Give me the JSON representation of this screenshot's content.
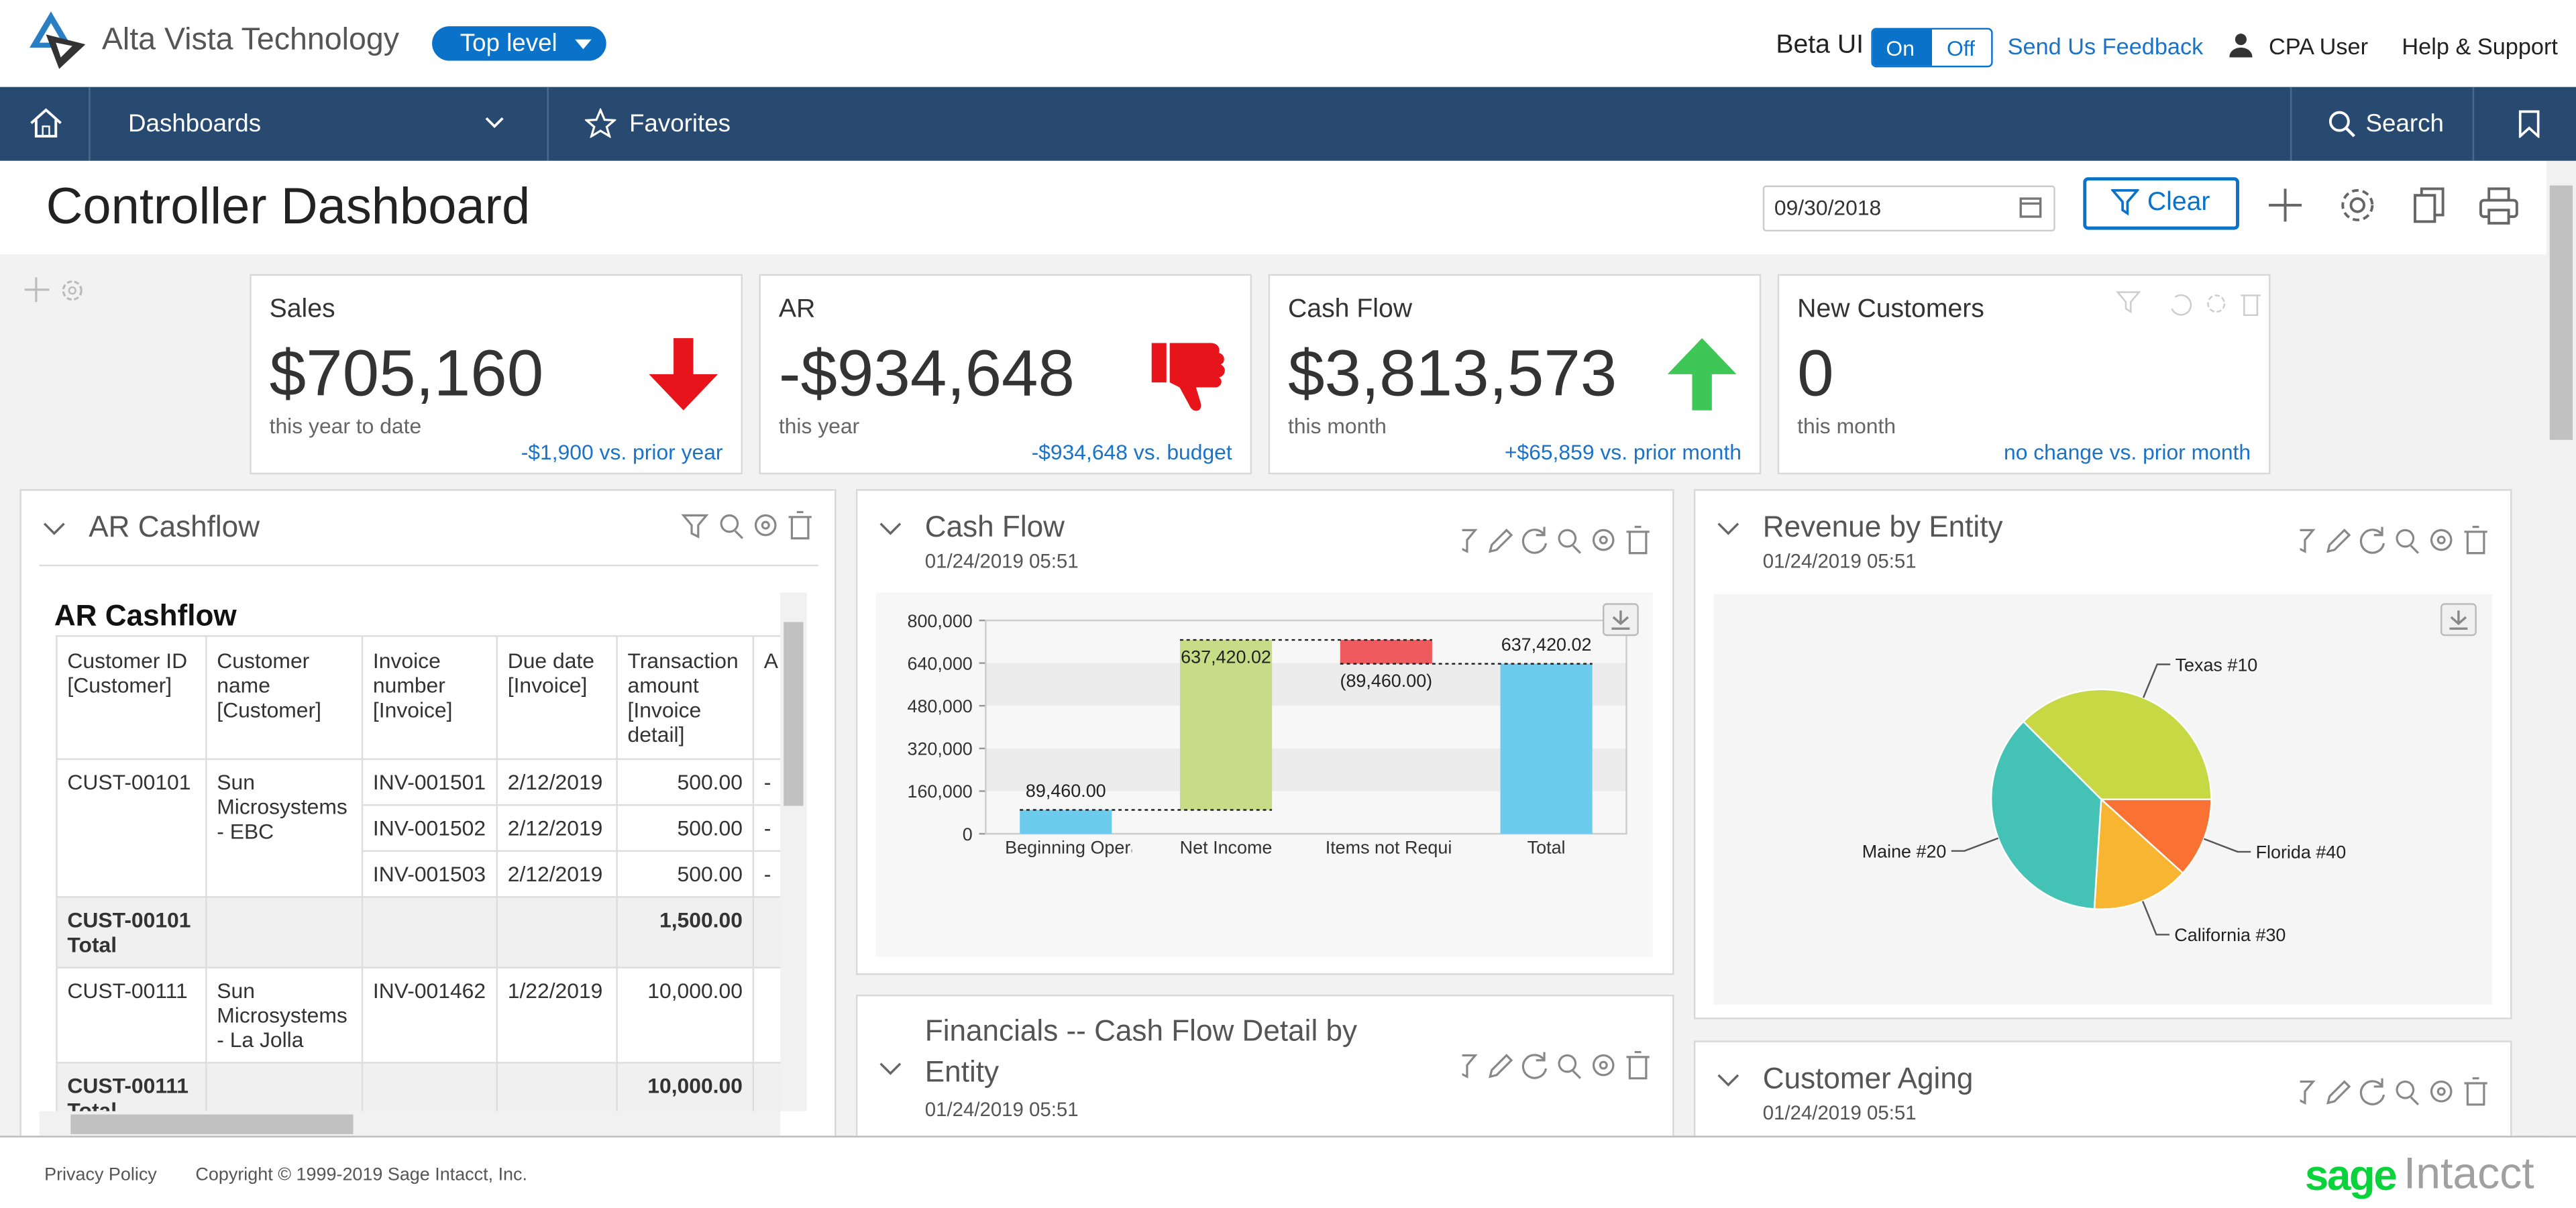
{
  "header": {
    "brand": "Alta Vista Technology",
    "level": "Top level",
    "beta_label": "Beta UI",
    "toggle_on": "On",
    "toggle_off": "Off",
    "feedback": "Send Us Feedback",
    "user": "CPA User",
    "help": "Help & Support"
  },
  "nav": {
    "dashboards": "Dashboards",
    "favorites": "Favorites",
    "search": "Search"
  },
  "page": {
    "title": "Controller Dashboard",
    "date": "09/30/2018",
    "clear": "Clear"
  },
  "kpis": [
    {
      "title": "Sales",
      "value": "$705,160",
      "period": "this year to date",
      "comparison": "-$1,900 vs. prior year"
    },
    {
      "title": "AR",
      "value": "-$934,648",
      "period": "this year",
      "comparison": "-$934,648 vs. budget"
    },
    {
      "title": "Cash Flow",
      "value": "$3,813,573",
      "period": "this month",
      "comparison": "+$65,859 vs. prior month"
    },
    {
      "title": "New Customers",
      "value": "0",
      "period": "this month",
      "comparison": "no change vs. prior month"
    }
  ],
  "ar_cashflow": {
    "panel_title": "AR Cashflow",
    "table_title": "AR Cashflow",
    "columns": [
      "Customer ID [Customer]",
      "Customer name [Customer]",
      "Invoice number [Invoice]",
      "Due date [Invoice]",
      "Transaction amount [Invoice detail]",
      "A"
    ],
    "groups": [
      {
        "customer_id": "CUST-00101",
        "customer_name": "Sun Microsystems - EBC",
        "invoices": [
          {
            "number": "INV-001501",
            "due": "2/12/2019",
            "amount": "500.00",
            "a": "-"
          },
          {
            "number": "INV-001502",
            "due": "2/12/2019",
            "amount": "500.00",
            "a": "-"
          },
          {
            "number": "INV-001503",
            "due": "2/12/2019",
            "amount": "500.00",
            "a": "-"
          }
        ],
        "total_label": "CUST-00101 Total",
        "total": "1,500.00"
      },
      {
        "customer_id": "CUST-00111",
        "customer_name": "Sun Microsystems - La Jolla",
        "invoices": [
          {
            "number": "INV-001462",
            "due": "1/22/2019",
            "amount": "10,000.00"
          }
        ],
        "total_label": "CUST-00111 Total",
        "total": "10,000.00"
      }
    ]
  },
  "cash_flow": {
    "title": "Cash Flow",
    "timestamp": "01/24/2019 05:51",
    "chart": {
      "type": "waterfall",
      "categories": [
        "Beginning Operations",
        "Net Income",
        "Items not Requiring Cash in the Current Period",
        "Total"
      ],
      "total_category": "Total",
      "values": [
        89460.0,
        637420.02,
        -89460.0,
        637420.02
      ],
      "value_labels": [
        "89,460.00",
        "637,420.02",
        "(89,460.00)",
        "637,420.02"
      ],
      "colors": [
        "#6dcbee",
        "#c6dc86",
        "#ee5a5d",
        "#6dcbee"
      ],
      "ylim": [
        0,
        800000
      ],
      "yticks": [
        0,
        {
          "value": 160000,
          "label": "160,000"
        },
        {
          "value": 320000,
          "label": "320,000"
        },
        {
          "value": 480000,
          "label": "480,000"
        },
        {
          "value": 640000,
          "label": "640,000"
        },
        {
          "value": 800000,
          "label": "800,000"
        }
      ]
    }
  },
  "revenue": {
    "title": "Revenue by Entity",
    "timestamp": "01/24/2019 05:51",
    "chart": {
      "type": "pie",
      "categories": [
        "Texas #10",
        "Florida #40",
        "California #30",
        "Maine #20"
      ],
      "values": [
        37.5,
        11.7,
        14.3,
        36.5
      ],
      "colors": [
        "#c6d843",
        "#fa7134",
        "#f7b531",
        "#45c2b6"
      ]
    }
  },
  "financials": {
    "title": "Financials -- Cash Flow Detail by Entity",
    "timestamp": "01/24/2019 05:51"
  },
  "aging": {
    "title": "Customer Aging",
    "timestamp": "01/24/2019 05:51"
  },
  "footer": {
    "privacy": "Privacy Policy",
    "copyright": "Copyright © 1999-2019 Sage Intacct, Inc.",
    "logo_sage": "sage",
    "logo_intacct": "Intacct"
  }
}
